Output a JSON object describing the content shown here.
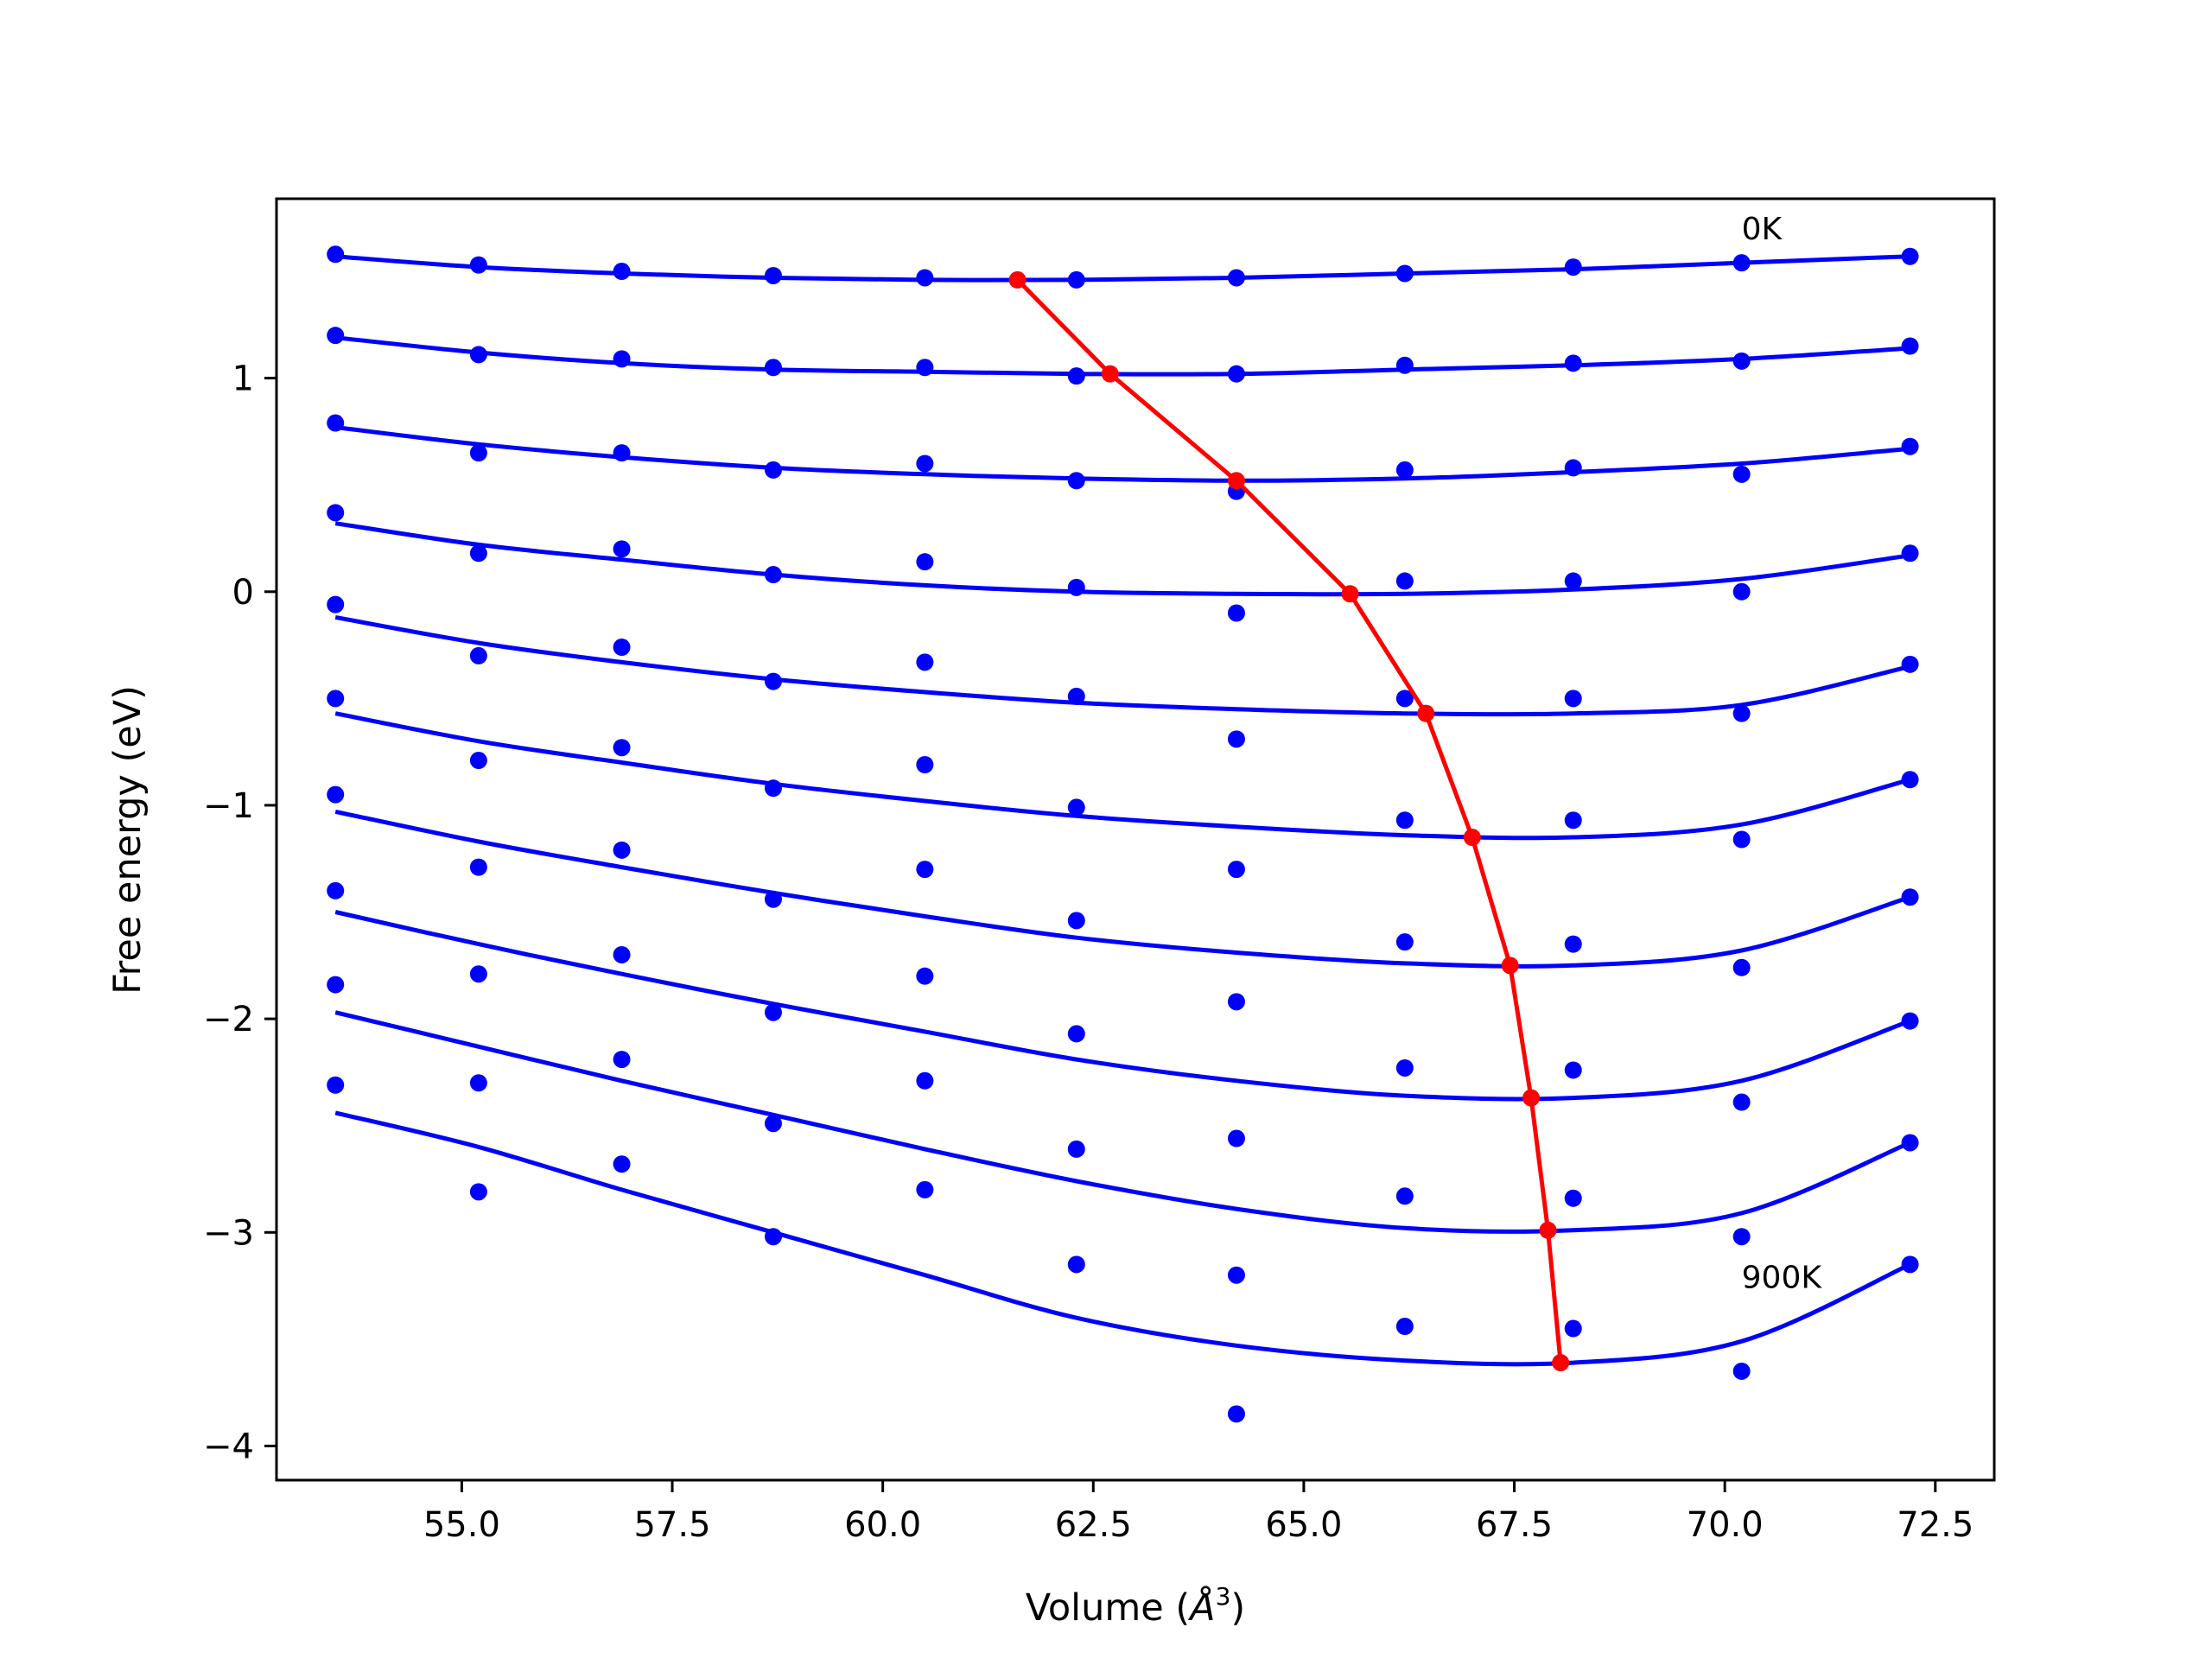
{
  "chart_data": {
    "type": "scatter",
    "xlabel": "Volume (",
    "xlabel_unit": "Å",
    "xlabel_exp": "3",
    "xlabel_close": ")",
    "ylabel": "Free energy (eV)",
    "xlim": [
      52.8,
      73.2
    ],
    "ylim": [
      -4.16,
      1.84
    ],
    "xticks": [
      55.0,
      57.5,
      60.0,
      62.5,
      65.0,
      67.5,
      70.0,
      72.5
    ],
    "xtick_labels": [
      "55.0",
      "57.5",
      "60.0",
      "62.5",
      "65.0",
      "67.5",
      "70.0",
      "72.5"
    ],
    "yticks": [
      1,
      0,
      -1,
      -2,
      -3,
      -4
    ],
    "ytick_labels": [
      "1",
      "0",
      "−1",
      "−2",
      "−3",
      "−4"
    ],
    "grid": false,
    "volumes": [
      53.5,
      55.2,
      56.9,
      58.7,
      60.5,
      62.3,
      64.2,
      66.2,
      68.2,
      70.2,
      72.2
    ],
    "series": [
      {
        "values": [
          1.58,
          1.53,
          1.5,
          1.48,
          1.47,
          1.46,
          1.47,
          1.49,
          1.52,
          1.54,
          1.57
        ],
        "fit": [
          1.57,
          1.52,
          1.49,
          1.47,
          1.46,
          1.46,
          1.47,
          1.49,
          1.51,
          1.54,
          1.57
        ]
      },
      {
        "values": [
          1.2,
          1.11,
          1.09,
          1.05,
          1.05,
          1.01,
          1.02,
          1.06,
          1.07,
          1.08,
          1.15
        ],
        "fit": [
          1.19,
          1.12,
          1.07,
          1.04,
          1.03,
          1.02,
          1.02,
          1.04,
          1.06,
          1.09,
          1.14
        ]
      },
      {
        "values": [
          0.79,
          0.65,
          0.65,
          0.57,
          0.6,
          0.52,
          0.47,
          0.57,
          0.58,
          0.55,
          0.68
        ],
        "fit": [
          0.77,
          0.69,
          0.63,
          0.58,
          0.55,
          0.53,
          0.52,
          0.53,
          0.56,
          0.6,
          0.67
        ]
      },
      {
        "values": [
          0.37,
          0.18,
          0.2,
          0.08,
          0.14,
          0.02,
          -0.1,
          0.05,
          0.05,
          0.0,
          0.18
        ],
        "fit": [
          0.32,
          0.22,
          0.15,
          0.08,
          0.03,
          0.0,
          -0.01,
          -0.01,
          0.01,
          0.06,
          0.17
        ]
      },
      {
        "values": [
          -0.06,
          -0.3,
          -0.26,
          -0.42,
          -0.33,
          -0.49,
          -0.69,
          -0.5,
          -0.5,
          -0.57,
          -0.34
        ],
        "fit": [
          -0.12,
          -0.24,
          -0.33,
          -0.41,
          -0.47,
          -0.52,
          -0.55,
          -0.57,
          -0.57,
          -0.53,
          -0.35
        ]
      },
      {
        "values": [
          -0.5,
          -0.79,
          -0.73,
          -0.92,
          -0.81,
          -1.01,
          -1.3,
          -1.07,
          -1.07,
          -1.16,
          -0.88
        ],
        "fit": [
          -0.57,
          -0.7,
          -0.8,
          -0.9,
          -0.98,
          -1.05,
          -1.1,
          -1.14,
          -1.15,
          -1.09,
          -0.88
        ]
      },
      {
        "values": [
          -0.95,
          -1.29,
          -1.21,
          -1.44,
          -1.3,
          -1.54,
          -1.92,
          -1.64,
          -1.65,
          -1.76,
          -1.43
        ],
        "fit": [
          -1.03,
          -1.17,
          -1.29,
          -1.41,
          -1.52,
          -1.62,
          -1.69,
          -1.74,
          -1.75,
          -1.68,
          -1.43
        ]
      },
      {
        "values": [
          -1.4,
          -1.79,
          -1.7,
          -1.97,
          -1.8,
          -2.07,
          -2.56,
          -2.23,
          -2.24,
          -2.39,
          -2.01
        ],
        "fit": [
          -1.5,
          -1.65,
          -1.79,
          -1.93,
          -2.06,
          -2.19,
          -2.29,
          -2.36,
          -2.37,
          -2.29,
          -2.01
        ]
      },
      {
        "values": [
          -1.84,
          -2.3,
          -2.19,
          -2.49,
          -2.29,
          -2.61,
          -3.2,
          -2.83,
          -2.84,
          -3.02,
          -2.58
        ],
        "fit": [
          -1.97,
          -2.13,
          -2.29,
          -2.45,
          -2.61,
          -2.76,
          -2.89,
          -2.98,
          -2.99,
          -2.91,
          -2.58
        ]
      },
      {
        "values": [
          -2.31,
          -2.81,
          -2.68,
          -3.02,
          -2.8,
          -3.15,
          -3.85,
          -3.44,
          -3.45,
          -3.65,
          -3.15
        ],
        "fit": [
          -2.44,
          -2.6,
          -2.8,
          -3.0,
          -3.2,
          -3.4,
          -3.53,
          -3.6,
          -3.61,
          -3.51,
          -3.15
        ]
      }
    ],
    "minima": {
      "x": [
        61.6,
        62.7,
        64.2,
        65.55,
        66.45,
        67.0,
        67.45,
        67.7,
        67.9,
        68.05
      ],
      "y": [
        1.46,
        1.02,
        0.52,
        -0.01,
        -0.57,
        -1.15,
        -1.75,
        -2.37,
        -2.99,
        -3.61
      ]
    },
    "annotations": [
      {
        "text": "0K",
        "x": 70.2,
        "y": 1.65
      },
      {
        "text": "900K",
        "x": 70.2,
        "y": -3.26
      }
    ],
    "colors": {
      "series": "#0000ff",
      "minima": "#ff0000",
      "axes": "#000000"
    }
  }
}
